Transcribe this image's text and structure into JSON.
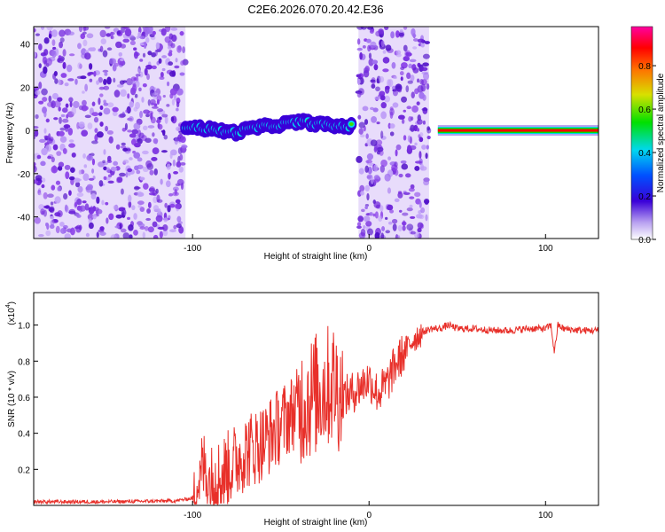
{
  "title": "C2E6.2026.070.20.42.E36",
  "colorbar": {
    "label": "Normalized spectral amplitude",
    "ticks": [
      "0.0",
      "0.2",
      "0.4",
      "0.6",
      "0.8"
    ],
    "tick_values": [
      0.0,
      0.2,
      0.4,
      0.6,
      0.8
    ],
    "range": [
      0,
      0.98
    ]
  },
  "chart_data": [
    {
      "type": "heatmap",
      "title": "C2E6.2026.070.20.42.E36",
      "xlabel": "Height of straight line (km)",
      "ylabel": "Frequency (Hz)",
      "xlim": [
        -190,
        130
      ],
      "ylim": [
        -50,
        48
      ],
      "x_ticks": [
        -100,
        0,
        100
      ],
      "x_tick_labels": [
        "-100",
        "0",
        "100"
      ],
      "y_ticks": [
        -40,
        -20,
        0,
        20,
        40
      ],
      "y_tick_labels": [
        "-40",
        "-20",
        "0",
        "20",
        "40"
      ],
      "colorbar_label": "Normalized spectral amplitude",
      "regions": [
        {
          "name": "noise",
          "x": [
            -190,
            -104
          ],
          "amplitude": 0.15
        },
        {
          "name": "signal-track",
          "x": [
            -104,
            -10
          ],
          "center_hz": [
            2,
            1,
            0,
            -1,
            1,
            2,
            3,
            4,
            3,
            2,
            2
          ],
          "amplitude": 0.5
        },
        {
          "name": "noise",
          "x": [
            -6,
            34
          ],
          "amplitude": 0.15
        },
        {
          "name": "steady-carrier",
          "x": [
            39,
            130
          ],
          "center_hz": 0,
          "amplitude": 0.95
        }
      ]
    },
    {
      "type": "line",
      "xlabel": "Height of straight line (km)",
      "ylabel": "SNR (10 * v/v)",
      "scale_label": "(x10",
      "scale_exp": "4",
      "scale_suffix": ")",
      "xlim": [
        -190,
        130
      ],
      "ylim": [
        0,
        1.18
      ],
      "x_ticks": [
        -100,
        0,
        100
      ],
      "x_tick_labels": [
        "-100",
        "0",
        "100"
      ],
      "y_ticks": [
        0.2,
        0.4,
        0.6,
        0.8,
        1.0
      ],
      "y_tick_labels": [
        "0.2",
        "0.4",
        "0.6",
        "0.8",
        "1.0"
      ],
      "series": [
        {
          "name": "SNR",
          "color": "#e8302a",
          "x": [
            -190,
            -150,
            -110,
            -100,
            -97,
            -94,
            -90,
            -80,
            -70,
            -60,
            -50,
            -40,
            -30,
            -20,
            -15,
            -10,
            -5,
            0,
            5,
            10,
            15,
            20,
            25,
            30,
            35,
            40,
            45,
            50,
            60,
            70,
            80,
            90,
            100,
            103,
            105,
            107,
            110,
            120,
            130
          ],
          "y": [
            0.02,
            0.02,
            0.025,
            0.04,
            0.1,
            0.22,
            0.12,
            0.2,
            0.3,
            0.35,
            0.45,
            0.55,
            0.62,
            0.68,
            0.6,
            0.62,
            0.66,
            0.7,
            0.62,
            0.67,
            0.78,
            0.85,
            0.92,
            0.96,
            0.98,
            0.98,
            1.0,
            0.98,
            0.98,
            0.97,
            0.97,
            0.98,
            0.98,
            1.0,
            0.85,
            1.0,
            0.98,
            0.97,
            0.97
          ]
        }
      ],
      "noise_envelope": [
        {
          "x": [
            -190,
            -100
          ],
          "amp": 0.01
        },
        {
          "x": [
            -100,
            -95
          ],
          "amp": 0.15
        },
        {
          "x": [
            -95,
            -40
          ],
          "amp": 0.22
        },
        {
          "x": [
            -40,
            -15
          ],
          "amp": 0.35
        },
        {
          "x": [
            -15,
            20
          ],
          "amp": 0.12
        },
        {
          "x": [
            20,
            30
          ],
          "amp": 0.08
        },
        {
          "x": [
            30,
            130
          ],
          "amp": 0.02
        }
      ]
    }
  ]
}
